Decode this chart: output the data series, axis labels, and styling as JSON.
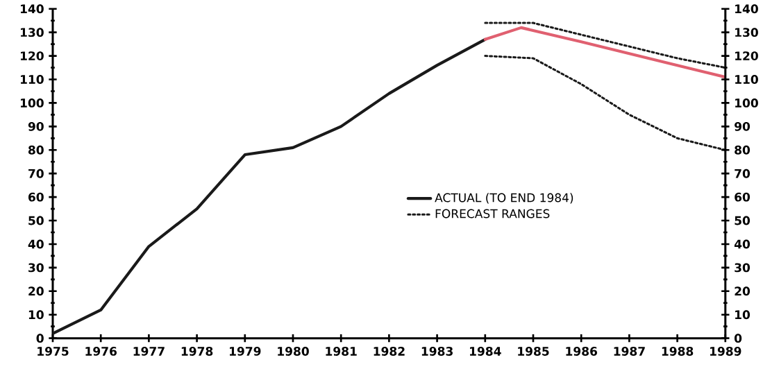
{
  "chart_data": {
    "type": "line",
    "xlim": [
      1975,
      1989
    ],
    "ylim": [
      0,
      140
    ],
    "y2lim": [
      0,
      140
    ],
    "xticks": [
      1975,
      1976,
      1977,
      1978,
      1979,
      1980,
      1981,
      1982,
      1983,
      1984,
      1985,
      1986,
      1987,
      1988,
      1989
    ],
    "yticks": [
      0,
      10,
      20,
      30,
      40,
      50,
      60,
      70,
      80,
      90,
      100,
      110,
      120,
      130,
      140
    ],
    "y2ticks": [
      0,
      10,
      20,
      30,
      40,
      50,
      60,
      70,
      80,
      90,
      100,
      110,
      120,
      130,
      140
    ],
    "legend": "right",
    "marker": "none",
    "series": [
      {
        "name": "ACTUAL (TO END 1984)",
        "color": "#1a1a1a",
        "line_style": "solid",
        "x": [
          1975,
          1976,
          1977,
          1978,
          1979,
          1980,
          1981,
          1982,
          1983,
          1984
        ],
        "values": [
          2,
          12,
          39,
          55,
          78,
          81,
          90,
          104,
          116,
          127
        ]
      },
      {
        "name": "FORECAST RANGES",
        "color": "#1a1a1a",
        "line_style": "dotted",
        "x": [
          1984,
          1985,
          1986,
          1987,
          1988,
          1989
        ],
        "values": [
          134,
          134,
          129,
          124,
          119,
          115
        ]
      },
      {
        "color": "#1a1a1a",
        "line_style": "dotted",
        "x": [
          1984,
          1985,
          1986,
          1987,
          1988,
          1989
        ],
        "values": [
          120,
          119,
          108,
          95,
          85,
          80
        ]
      },
      {
        "color": "#e06070",
        "line_style": "solid",
        "x": [
          1984,
          1984.75,
          1986,
          1987,
          1988,
          1989
        ],
        "values": [
          127,
          132,
          126,
          121,
          116,
          111
        ]
      }
    ]
  }
}
